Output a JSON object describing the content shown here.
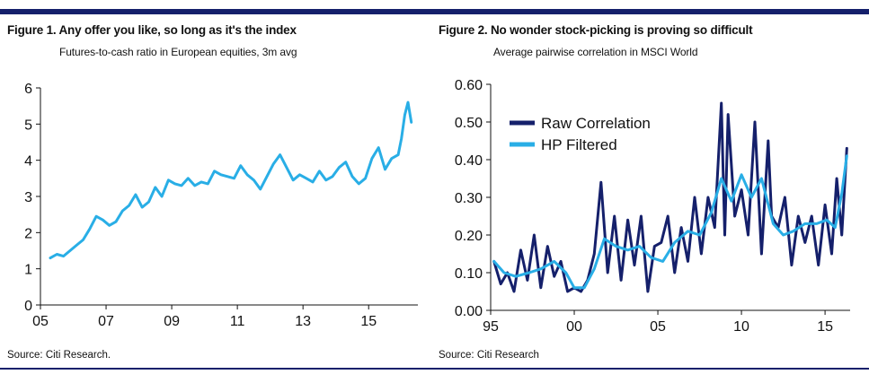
{
  "colors": {
    "rule": "#15206b",
    "light_blue": "#29aee6",
    "dark_navy": "#15206b"
  },
  "figure1": {
    "title": "Figure 1. Any offer you like, so long as it's the index",
    "subtitle": "Futures-to-cash ratio in European equities, 3m avg",
    "source": "Source: Citi Research.",
    "chart_data": {
      "type": "line",
      "title": "Figure 1. Any offer you like, so long as it's the index",
      "subtitle": "Futures-to-cash ratio in European equities, 3m avg",
      "xlabel": "",
      "ylabel": "",
      "xlim": [
        2005.0,
        2016.5
      ],
      "ylim": [
        0,
        6
      ],
      "x_ticks": [
        2005,
        2007,
        2009,
        2011,
        2013,
        2015
      ],
      "x_tick_labels": [
        "05",
        "07",
        "09",
        "11",
        "13",
        "15"
      ],
      "y_ticks": [
        0,
        1,
        2,
        3,
        4,
        5,
        6
      ],
      "y_tick_labels": [
        "0",
        "1",
        "2",
        "3",
        "4",
        "5",
        "6"
      ],
      "grid": false,
      "series": [
        {
          "color": "#29aee6",
          "x": [
            2005.3,
            2005.5,
            2005.7,
            2005.9,
            2006.1,
            2006.3,
            2006.5,
            2006.7,
            2006.9,
            2007.1,
            2007.3,
            2007.5,
            2007.7,
            2007.9,
            2008.1,
            2008.3,
            2008.5,
            2008.7,
            2008.9,
            2009.1,
            2009.3,
            2009.5,
            2009.7,
            2009.9,
            2010.1,
            2010.3,
            2010.5,
            2010.7,
            2010.9,
            2011.1,
            2011.3,
            2011.5,
            2011.7,
            2011.9,
            2012.1,
            2012.3,
            2012.5,
            2012.7,
            2012.9,
            2013.1,
            2013.3,
            2013.5,
            2013.7,
            2013.9,
            2014.1,
            2014.3,
            2014.5,
            2014.7,
            2014.9,
            2015.1,
            2015.3,
            2015.5,
            2015.7,
            2015.9,
            2016.0,
            2016.1,
            2016.2,
            2016.3
          ],
          "y": [
            1.3,
            1.4,
            1.35,
            1.5,
            1.65,
            1.8,
            2.1,
            2.45,
            2.35,
            2.2,
            2.3,
            2.6,
            2.75,
            3.05,
            2.7,
            2.85,
            3.25,
            3.0,
            3.45,
            3.35,
            3.3,
            3.5,
            3.3,
            3.4,
            3.35,
            3.7,
            3.6,
            3.55,
            3.5,
            3.85,
            3.6,
            3.45,
            3.2,
            3.55,
            3.9,
            4.15,
            3.8,
            3.45,
            3.6,
            3.5,
            3.4,
            3.7,
            3.45,
            3.55,
            3.8,
            3.95,
            3.55,
            3.35,
            3.5,
            4.05,
            4.35,
            3.75,
            4.05,
            4.15,
            4.6,
            5.25,
            5.6,
            5.05
          ]
        }
      ]
    }
  },
  "figure2": {
    "title": "Figure 2. No wonder stock-picking is proving so difficult",
    "subtitle": "Average pairwise correlation in MSCI World",
    "source": "Source: Citi Research",
    "chart_data": {
      "type": "line",
      "title": "Figure 2. No wonder stock-picking is proving so difficult",
      "subtitle": "Average pairwise correlation in MSCI World",
      "xlabel": "",
      "ylabel": "",
      "xlim": [
        1995.0,
        2016.5
      ],
      "ylim": [
        0.0,
        0.6
      ],
      "x_ticks": [
        1995,
        2000,
        2005,
        2010,
        2015
      ],
      "x_tick_labels": [
        "95",
        "00",
        "05",
        "10",
        "15"
      ],
      "y_ticks": [
        0.0,
        0.1,
        0.2,
        0.3,
        0.4,
        0.5,
        0.6
      ],
      "y_tick_labels": [
        "0.00",
        "0.10",
        "0.20",
        "0.30",
        "0.40",
        "0.50",
        "0.60"
      ],
      "grid": false,
      "legend": "top-left",
      "series": [
        {
          "name": "Raw Correlation",
          "color": "#15206b",
          "stroke_width": 3,
          "x": [
            1995.2,
            1995.6,
            1996.0,
            1996.4,
            1996.8,
            1997.2,
            1997.6,
            1998.0,
            1998.4,
            1998.8,
            1999.2,
            1999.6,
            2000.0,
            2000.4,
            2000.8,
            2001.2,
            2001.6,
            2002.0,
            2002.4,
            2002.8,
            2003.2,
            2003.6,
            2004.0,
            2004.4,
            2004.8,
            2005.2,
            2005.6,
            2006.0,
            2006.4,
            2006.8,
            2007.2,
            2007.6,
            2008.0,
            2008.4,
            2008.8,
            2009.0,
            2009.2,
            2009.6,
            2010.0,
            2010.4,
            2010.8,
            2011.2,
            2011.6,
            2011.8,
            2012.2,
            2012.6,
            2013.0,
            2013.4,
            2013.8,
            2014.2,
            2014.6,
            2015.0,
            2015.4,
            2015.7,
            2016.0,
            2016.3
          ],
          "y": [
            0.13,
            0.07,
            0.1,
            0.05,
            0.16,
            0.08,
            0.2,
            0.06,
            0.17,
            0.09,
            0.13,
            0.05,
            0.06,
            0.05,
            0.08,
            0.15,
            0.34,
            0.1,
            0.25,
            0.08,
            0.24,
            0.12,
            0.25,
            0.05,
            0.17,
            0.18,
            0.25,
            0.1,
            0.22,
            0.13,
            0.3,
            0.15,
            0.3,
            0.22,
            0.55,
            0.2,
            0.52,
            0.25,
            0.32,
            0.2,
            0.5,
            0.15,
            0.45,
            0.25,
            0.22,
            0.3,
            0.12,
            0.25,
            0.18,
            0.25,
            0.12,
            0.28,
            0.15,
            0.35,
            0.2,
            0.43
          ]
        },
        {
          "name": "HP Filtered",
          "color": "#29aee6",
          "stroke_width": 3,
          "x": [
            1995.2,
            1995.8,
            1996.5,
            1997.3,
            1998.0,
            1998.8,
            1999.5,
            2000.0,
            2000.6,
            2001.2,
            2001.8,
            2002.5,
            2003.2,
            2003.9,
            2004.6,
            2005.3,
            2006.0,
            2006.8,
            2007.5,
            2008.2,
            2008.8,
            2009.4,
            2010.0,
            2010.6,
            2011.2,
            2011.9,
            2012.5,
            2013.1,
            2013.8,
            2014.5,
            2015.1,
            2015.6,
            2016.0,
            2016.3
          ],
          "y": [
            0.13,
            0.1,
            0.09,
            0.1,
            0.11,
            0.13,
            0.1,
            0.06,
            0.06,
            0.11,
            0.19,
            0.17,
            0.16,
            0.17,
            0.14,
            0.13,
            0.18,
            0.21,
            0.2,
            0.26,
            0.35,
            0.29,
            0.36,
            0.3,
            0.35,
            0.23,
            0.2,
            0.21,
            0.23,
            0.23,
            0.24,
            0.22,
            0.31,
            0.41
          ]
        }
      ]
    }
  }
}
